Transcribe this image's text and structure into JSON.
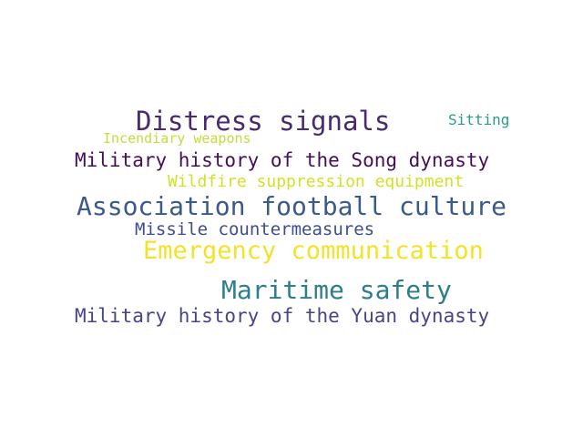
{
  "words": [
    {
      "text": "Distress signals",
      "color": "#482A70"
    },
    {
      "text": "Sitting",
      "color": "#2A9A8C"
    },
    {
      "text": "Incendiary weapons",
      "color": "#C8DB3A"
    },
    {
      "text": "Military history of the Song dynasty",
      "color": "#430E5A"
    },
    {
      "text": "Wildfire suppression equipment",
      "color": "#D2E128"
    },
    {
      "text": "Association football culture",
      "color": "#3B5A8A"
    },
    {
      "text": "Missile countermeasures",
      "color": "#3D4E8A"
    },
    {
      "text": "Emergency communication",
      "color": "#F2E32A"
    },
    {
      "text": "Maritime safety",
      "color": "#2E7D8C"
    },
    {
      "text": "Military history of the Yuan dynasty",
      "color": "#46458A"
    }
  ]
}
